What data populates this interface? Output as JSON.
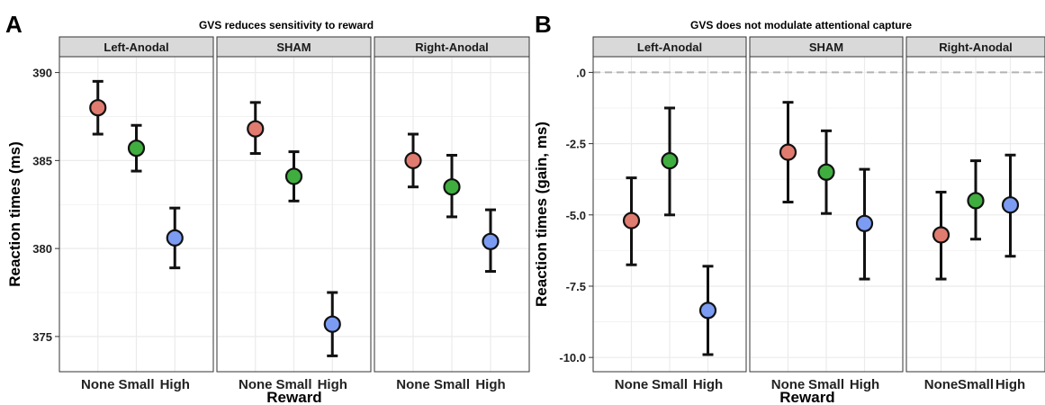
{
  "colors": {
    "None": "#e07b6f",
    "Small": "#3fae3f",
    "High": "#7b9cf2",
    "strip_fill": "#d9d9d9",
    "grid": "#ebebeb",
    "errorbar": "#111111",
    "reference_line": "#b3b3b3"
  },
  "chart_data": [
    {
      "panel_letter": "A",
      "type": "scatter",
      "title": "GVS reduces sensitivity to reward",
      "xlabel": "Reward",
      "ylabel": "Reaction times (ms)",
      "categories": [
        "None",
        "Small",
        "High"
      ],
      "facets": [
        "Left-Anodal",
        "SHAM",
        "Right-Anodal"
      ],
      "ylim": [
        373,
        390.9
      ],
      "yticks": [
        375,
        380,
        385,
        390
      ],
      "ytick_labels": [
        "375",
        "380",
        "385",
        "390"
      ],
      "reference_line": null,
      "grid": true,
      "series": [
        {
          "facet": "Left-Anodal",
          "values": [
            388.0,
            385.7,
            380.6
          ],
          "lower": [
            386.5,
            384.4,
            378.9
          ],
          "upper": [
            389.5,
            387.0,
            382.3
          ]
        },
        {
          "facet": "SHAM",
          "values": [
            386.8,
            384.1,
            375.7
          ],
          "lower": [
            385.4,
            382.7,
            373.9
          ],
          "upper": [
            388.3,
            385.5,
            377.5
          ]
        },
        {
          "facet": "Right-Anodal",
          "values": [
            385.0,
            383.5,
            380.4
          ],
          "lower": [
            383.5,
            381.8,
            378.7
          ],
          "upper": [
            386.5,
            385.3,
            382.2
          ]
        }
      ]
    },
    {
      "panel_letter": "B",
      "type": "scatter",
      "title": "GVS does not modulate attentional capture",
      "xlabel": "Reward",
      "ylabel": "Reaction times (gain, ms)",
      "categories": [
        "None",
        "Small",
        "High"
      ],
      "facets": [
        "Left-Anodal",
        "SHAM",
        "Right-Anodal"
      ],
      "ylim": [
        -10.5,
        0.55
      ],
      "yticks": [
        -10,
        -7.5,
        -5,
        -2.5,
        0
      ],
      "ytick_labels": [
        "-10.0",
        "-7.5",
        "-5.0",
        "-2.5",
        ".0"
      ],
      "reference_line": 0,
      "grid": true,
      "series": [
        {
          "facet": "Left-Anodal",
          "values": [
            -5.2,
            -3.1,
            -8.35
          ],
          "lower": [
            -6.75,
            -5.0,
            -9.9
          ],
          "upper": [
            -3.7,
            -1.25,
            -6.8
          ]
        },
        {
          "facet": "SHAM",
          "values": [
            -2.8,
            -3.5,
            -5.3
          ],
          "lower": [
            -4.55,
            -4.95,
            -7.25
          ],
          "upper": [
            -1.05,
            -2.05,
            -3.4
          ]
        },
        {
          "facet": "Right-Anodal",
          "values": [
            -5.7,
            -4.5,
            -4.65
          ],
          "lower": [
            -7.25,
            -5.85,
            -6.45
          ],
          "upper": [
            -4.2,
            -3.1,
            -2.9
          ]
        }
      ]
    }
  ]
}
